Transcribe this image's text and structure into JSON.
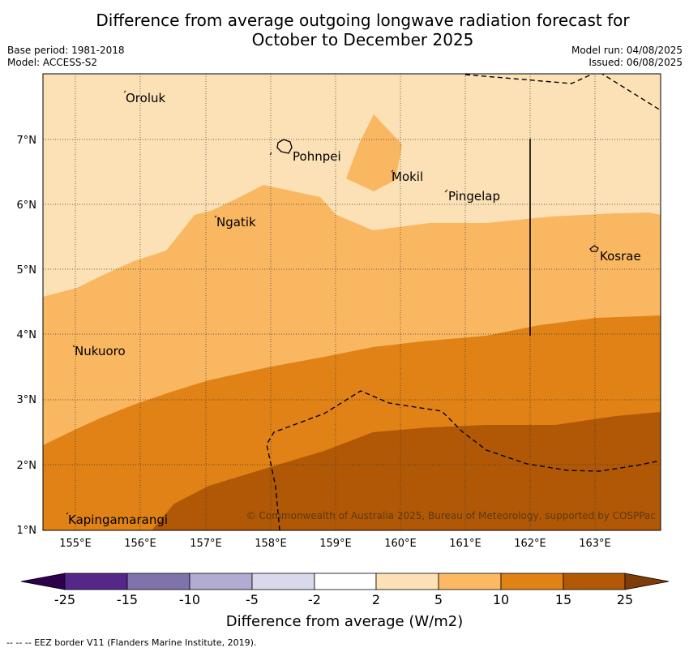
{
  "header": {
    "title_line1": "Difference from average outgoing longwave radiation forecast for",
    "title_line2": "October to December 2025",
    "base_period": "Base period: 1981-2018",
    "model": "Model: ACCESS-S2",
    "model_run": "Model run: 04/08/2025",
    "issued": "Issued: 06/08/2025"
  },
  "map": {
    "lon_ticks": [
      "155°E",
      "156°E",
      "157°E",
      "158°E",
      "159°E",
      "160°E",
      "161°E",
      "162°E",
      "163°E"
    ],
    "lat_ticks": [
      "1°N",
      "2°N",
      "3°N",
      "4°N",
      "5°N",
      "6°N",
      "7°N"
    ],
    "places": {
      "oroluk": "Oroluk",
      "pohnpei": "Pohnpei",
      "mokil": "Mokil",
      "pingelap": "Pingelap",
      "ngatik": "Ngatik",
      "kosrae": "Kosrae",
      "nukuoro": "Nukuoro",
      "kapingamarangi": "Kapingamarangi"
    },
    "copyright": "© Commonwealth of Australia 2025, Bureau of Meteorology, supported by COSPPac",
    "colors": {
      "2_to_5": "#fce0b6",
      "5_to_10": "#fab762",
      "10_to_15": "#e08216",
      "15_to_25": "#b15806"
    }
  },
  "colorbar": {
    "tick_labels": [
      "-25",
      "-15",
      "-10",
      "-5",
      "-2",
      "2",
      "5",
      "10",
      "15",
      "25"
    ],
    "label": "Difference from average (W/m2)",
    "colors": [
      "#2d004b",
      "#542788",
      "#8073ac",
      "#b2abd2",
      "#d8daeb",
      "#ffffff",
      "#fee0b6",
      "#fdb863",
      "#e08214",
      "#b35806",
      "#7f3b08"
    ]
  },
  "footnote": "--  --  -- EEZ border V11 (Flanders Marine Institute, 2019)."
}
